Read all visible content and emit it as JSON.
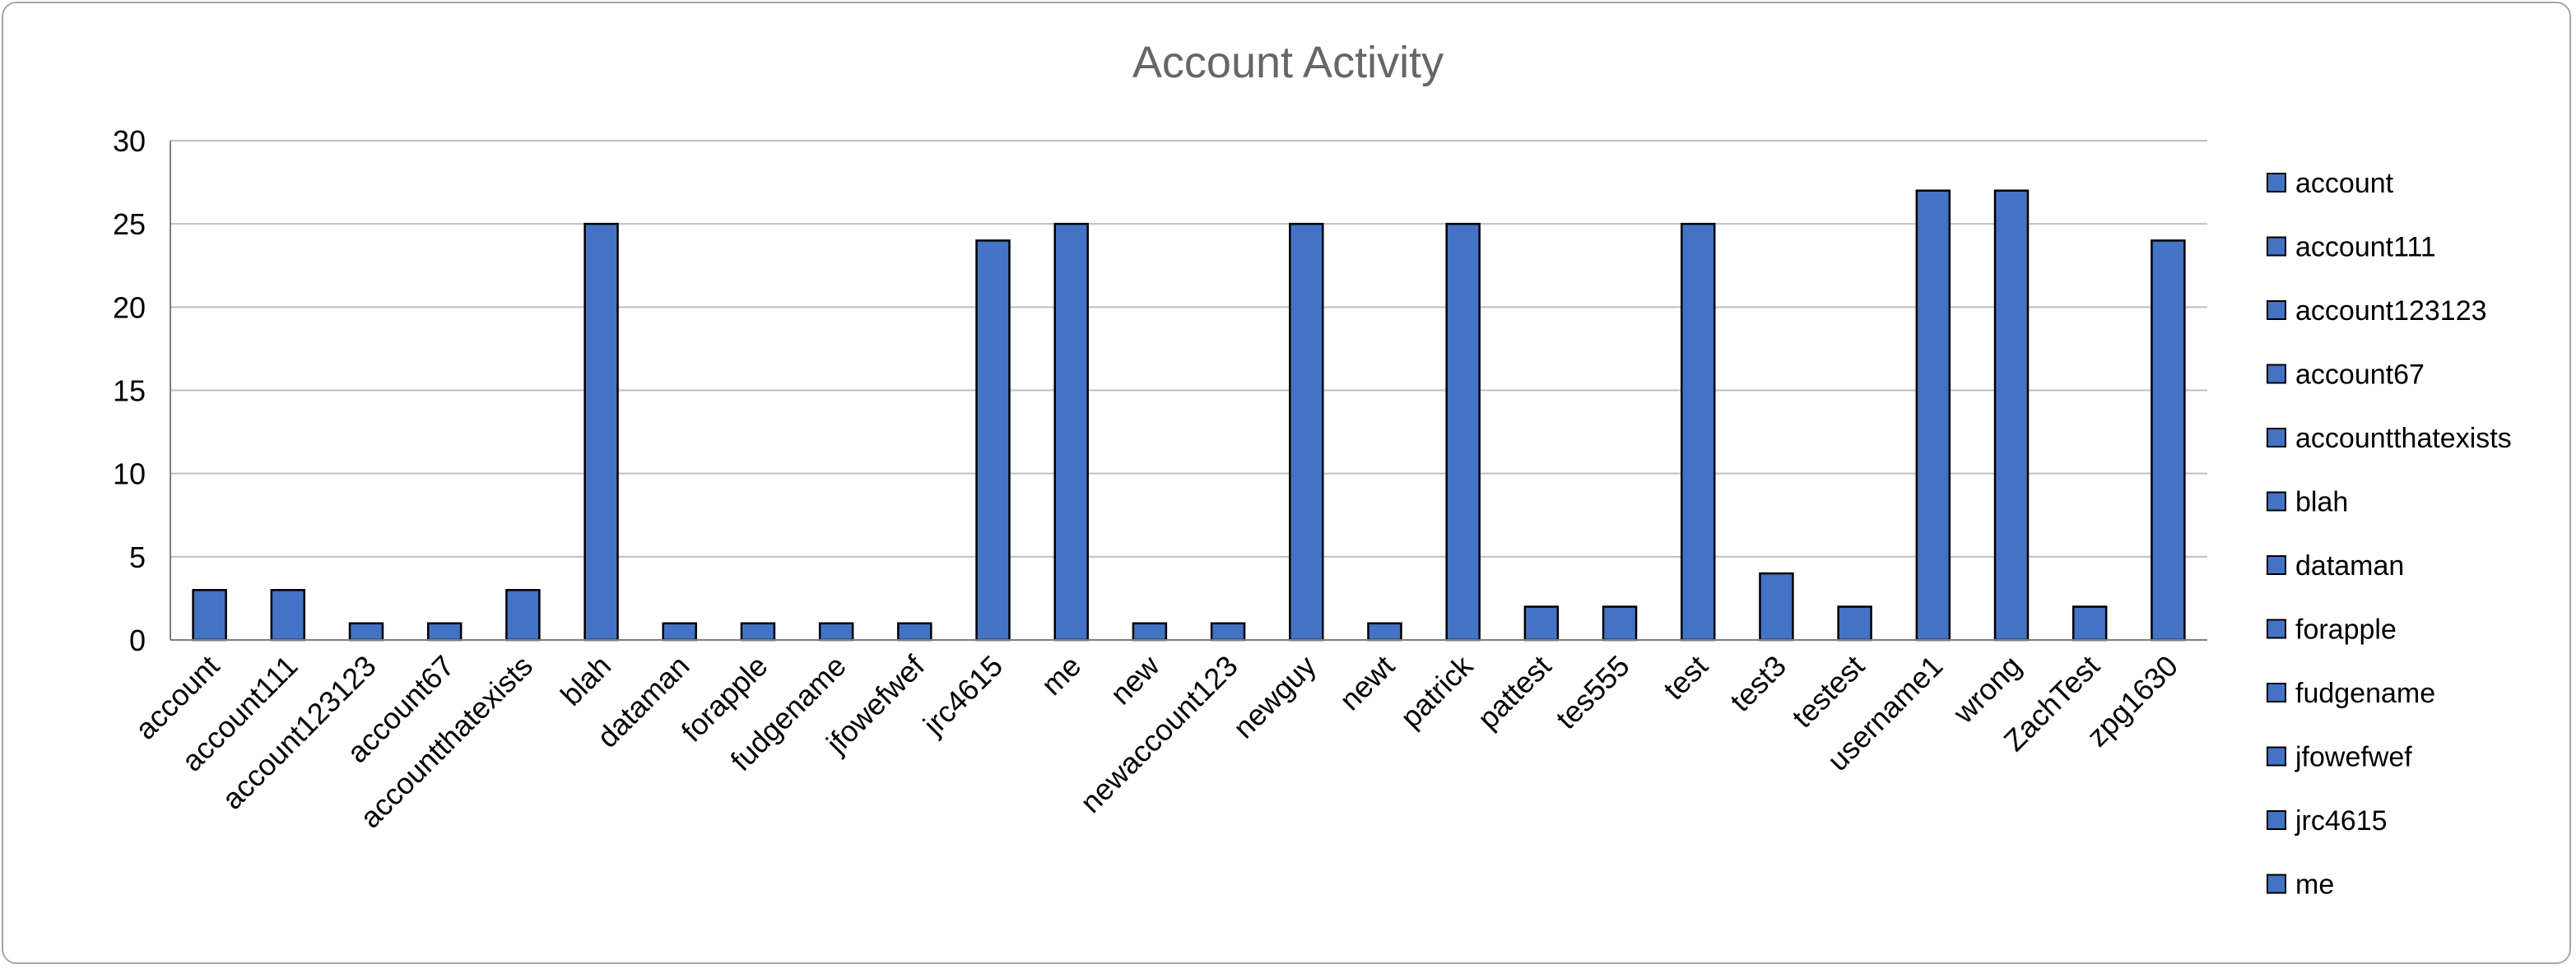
{
  "chart_data": {
    "type": "bar",
    "title": "Account Activity",
    "xlabel": "",
    "ylabel": "",
    "ylim": [
      0,
      30
    ],
    "yticks": [
      0,
      5,
      10,
      15,
      20,
      25,
      30
    ],
    "grid": true,
    "legend_position": "right",
    "bar_color": "#4472c4",
    "bar_edge_color": "#000000",
    "categories": [
      "account",
      "account111",
      "account123123",
      "account67",
      "accountthatexists",
      "blah",
      "dataman",
      "forapple",
      "fudgename",
      "jfowefwef",
      "jrc4615",
      "me",
      "new",
      "newaccount123",
      "newguy",
      "newt",
      "patrick",
      "pattest",
      "tes555",
      "test",
      "test3",
      "testest",
      "username1",
      "wrong",
      "ZachTest",
      "zpg1630"
    ],
    "values": [
      3,
      3,
      1,
      1,
      3,
      25,
      1,
      1,
      1,
      1,
      24,
      25,
      1,
      1,
      25,
      1,
      25,
      2,
      2,
      25,
      4,
      2,
      27,
      27,
      2,
      24
    ],
    "legend_entries": [
      "account",
      "account111",
      "account123123",
      "account67",
      "accountthatexists",
      "blah",
      "dataman",
      "forapple",
      "fudgename",
      "jfowefwef",
      "jrc4615",
      "me"
    ]
  }
}
